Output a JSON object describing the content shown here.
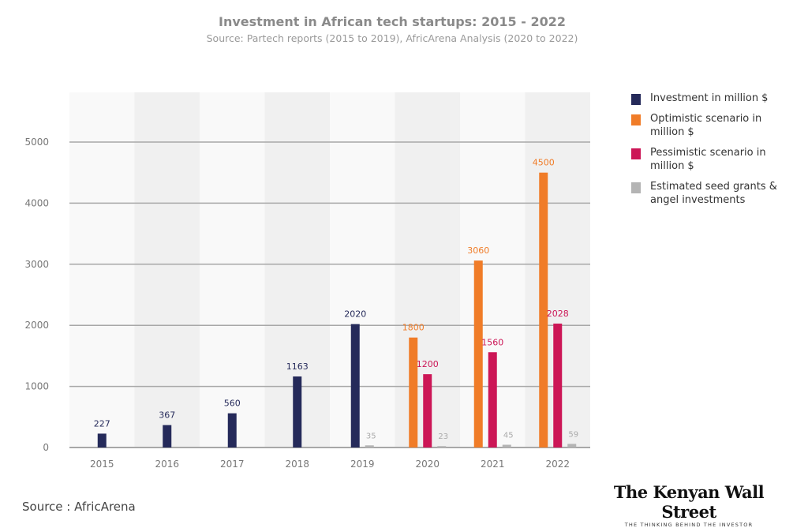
{
  "chart_data": {
    "type": "bar",
    "title": "Investment in African tech startups: 2015 - 2022",
    "subtitle": "Source: Partech reports (2015 to 2019), AfricArena Analysis (2020 to 2022)",
    "categories": [
      "2015",
      "2016",
      "2017",
      "2018",
      "2019",
      "2020",
      "2021",
      "2022"
    ],
    "yticks": [
      0,
      1000,
      2000,
      3000,
      4000,
      5000
    ],
    "ylim": [
      0,
      5000
    ],
    "grid": true,
    "legend_position": "right",
    "series": [
      {
        "name": "Investment in million $",
        "color": "#252a5a",
        "values": [
          227,
          367,
          560,
          1163,
          2020,
          null,
          null,
          null
        ]
      },
      {
        "name": "Optimistic scenario in million $",
        "color": "#f07c28",
        "values": [
          null,
          null,
          null,
          null,
          null,
          1800,
          3060,
          4500
        ]
      },
      {
        "name": "Pessimistic scenario in million $",
        "color": "#cc1656",
        "values": [
          null,
          null,
          null,
          null,
          null,
          1200,
          1560,
          2028
        ]
      },
      {
        "name": "Estimated seed grants & angel investments",
        "color": "#b4b4b4",
        "values": [
          null,
          null,
          null,
          null,
          35,
          23,
          45,
          59
        ]
      }
    ]
  },
  "footer": {
    "source": "Source : AfricArena"
  },
  "logo": {
    "name": "The Kenyan Wall Street",
    "tagline": "THE THINKING BEHIND THE INVESTOR"
  }
}
